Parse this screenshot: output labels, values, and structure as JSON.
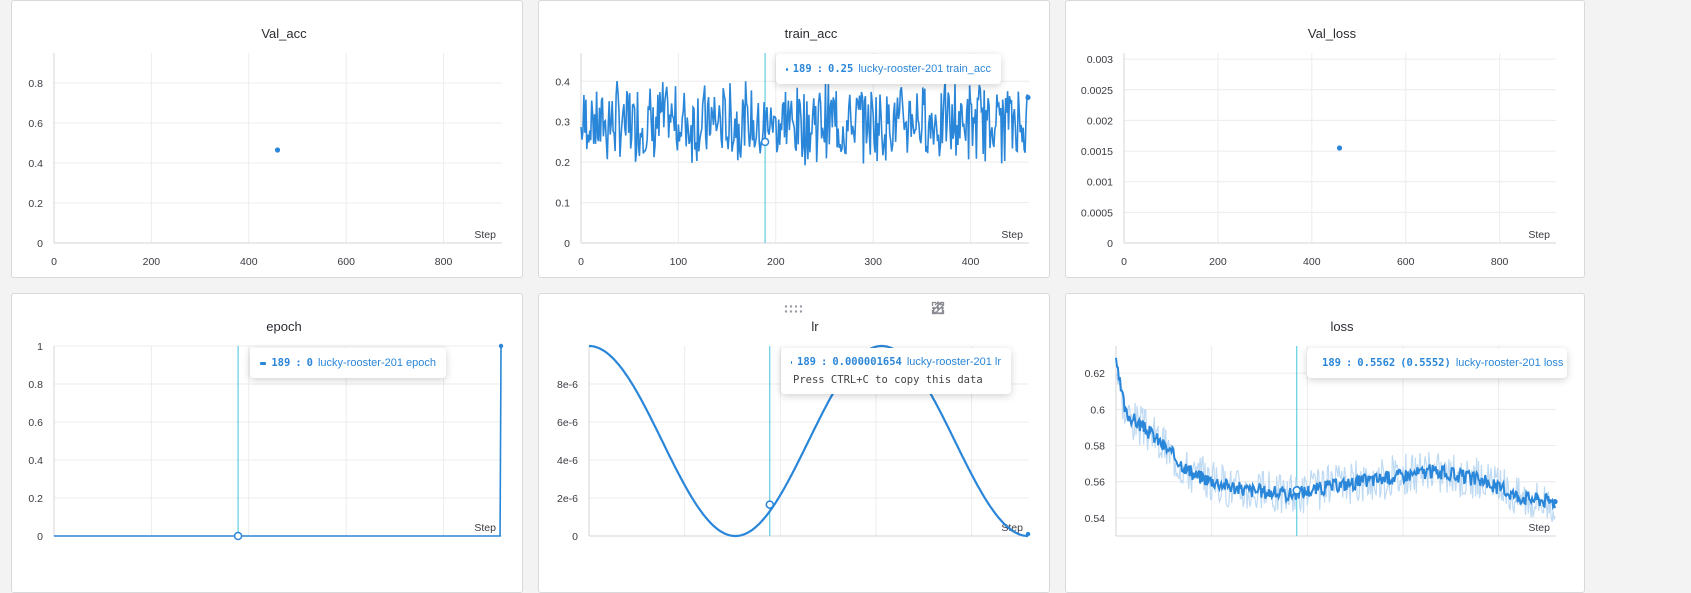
{
  "colors": {
    "series": "#2a86d8",
    "series_light": "#bfdaf3",
    "hover": "#3ec6d9"
  },
  "step_label": "Step",
  "icons": [
    "drag-handle-icon",
    "share-icon",
    "edit-icon",
    "fullscreen-icon",
    "more-icon"
  ],
  "chart_data": [
    {
      "type": "scatter",
      "title": "Val_acc",
      "xlabel": "Step",
      "xlim": [
        0,
        920
      ],
      "ylim": [
        0,
        0.95
      ],
      "xticks": [
        0,
        200,
        400,
        600,
        800
      ],
      "yticks": [
        0,
        0.2,
        0.4,
        0.6,
        0.8
      ],
      "ytick_labels": [
        "0",
        "0.2",
        "0.4",
        "0.6",
        "0.8"
      ],
      "points": [
        [
          459,
          0.465
        ]
      ]
    },
    {
      "type": "line",
      "title": "train_acc",
      "xlabel": "Step",
      "run": "lucky-rooster-201",
      "xlim": [
        0,
        460
      ],
      "ylim": [
        0,
        0.47
      ],
      "xticks": [
        0,
        100,
        200,
        300,
        400
      ],
      "yticks": [
        0,
        0.1,
        0.2,
        0.3,
        0.4
      ],
      "ytick_labels": [
        "0",
        "0.1",
        "0.2",
        "0.3",
        "0.4"
      ],
      "hover": {
        "step": 189,
        "value": 0.25,
        "value_label": "0.25",
        "series": "lucky-rooster-201 train_acc"
      },
      "noise": {
        "n": 460,
        "mean": 0.3,
        "amp": 0.08,
        "min": 0.13,
        "max": 0.47,
        "seed": 7
      },
      "end_point": [
        459,
        0.36
      ]
    },
    {
      "type": "scatter",
      "title": "Val_loss",
      "xlabel": "Step",
      "xlim": [
        0,
        920
      ],
      "ylim": [
        0,
        0.0031
      ],
      "xticks": [
        0,
        200,
        400,
        600,
        800
      ],
      "yticks": [
        0,
        0.0005,
        0.001,
        0.0015,
        0.002,
        0.0025,
        0.003
      ],
      "ytick_labels": [
        "0",
        "0.0005",
        "0.001",
        "0.0015",
        "0.002",
        "0.0025",
        "0.003"
      ],
      "points": [
        [
          459,
          0.00155
        ]
      ]
    },
    {
      "type": "line",
      "title": "epoch",
      "xlabel": "Step",
      "run": "lucky-rooster-201",
      "xlim": [
        0,
        460
      ],
      "ylim": [
        0,
        1
      ],
      "xticks": [
        0,
        100,
        200,
        300,
        400
      ],
      "yticks": [
        0,
        0.2,
        0.4,
        0.6,
        0.8,
        1
      ],
      "ytick_labels": [
        "0",
        "0.2",
        "0.4",
        "0.6",
        "0.8",
        "1"
      ],
      "hover": {
        "step": 189,
        "value": 0,
        "value_label": "0",
        "series": "lucky-rooster-201 epoch"
      },
      "points": [
        [
          0,
          0
        ],
        [
          458,
          0
        ],
        [
          459,
          1
        ]
      ]
    },
    {
      "type": "line",
      "title": "lr",
      "xlabel": "Step",
      "run": "lucky-rooster-201",
      "xlim": [
        0,
        460
      ],
      "ylim": [
        0,
        1e-05
      ],
      "xticks": [
        0,
        100,
        200,
        300,
        400
      ],
      "yticks": [
        0,
        2e-06,
        4e-06,
        6e-06,
        8e-06
      ],
      "ytick_labels": [
        "0",
        "2e-6",
        "4e-6",
        "6e-6",
        "8e-6"
      ],
      "hover": {
        "step": 189,
        "value": 1.654e-06,
        "value_label": "0.000001654",
        "series": "lucky-rooster-201 lr",
        "hint": "Press CTRL+C to copy this data"
      },
      "cosine": {
        "amplitude": 1e-05,
        "half_period": 153,
        "n": 460
      }
    },
    {
      "type": "line",
      "title": "loss",
      "xlabel": "Step",
      "run": "lucky-rooster-201",
      "xlim": [
        0,
        460
      ],
      "ylim": [
        0.53,
        0.635
      ],
      "xticks": [
        0,
        100,
        200,
        300,
        400
      ],
      "yticks": [
        0.54,
        0.56,
        0.58,
        0.6,
        0.62
      ],
      "ytick_labels": [
        "0.54",
        "0.56",
        "0.58",
        "0.6",
        "0.62"
      ],
      "hover": {
        "step": 189,
        "value": 0.5562,
        "smoothed": 0.5552,
        "value_label": "0.5562",
        "smoothed_label": "(0.5552)",
        "series": "lucky-rooster-201 loss"
      },
      "trend": [
        [
          0,
          0.625
        ],
        [
          10,
          0.598
        ],
        [
          40,
          0.585
        ],
        [
          80,
          0.564
        ],
        [
          130,
          0.556
        ],
        [
          180,
          0.553
        ],
        [
          230,
          0.558
        ],
        [
          280,
          0.562
        ],
        [
          330,
          0.566
        ],
        [
          380,
          0.561
        ],
        [
          420,
          0.552
        ],
        [
          459,
          0.549
        ]
      ],
      "noise": {
        "raw_amp": 0.012,
        "smooth_amp": 0.004,
        "seed": 3
      },
      "end_point": [
        459,
        0.549
      ]
    }
  ]
}
